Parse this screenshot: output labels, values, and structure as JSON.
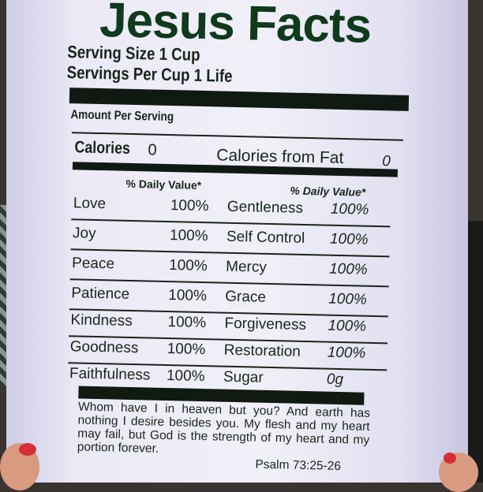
{
  "title": "Jesus Facts",
  "serving_size": "Serving Size 1 Cup",
  "servings_per": "Servings Per Cup 1 Life",
  "amount_per_serving": "Amount Per Serving",
  "calories_label": "Calories",
  "calories_value": "0",
  "calories_fat_label": "Calories from Fat",
  "calories_fat_value": "0",
  "daily_value_left": "% Daily Value*",
  "daily_value_right": "% Daily Value*",
  "rows": [
    {
      "l": "Love",
      "lv": "100%",
      "r": "Gentleness",
      "rv": "100%"
    },
    {
      "l": "Joy",
      "lv": "100%",
      "r": "Self Control",
      "rv": "100%"
    },
    {
      "l": "Peace",
      "lv": "100%",
      "r": "Mercy",
      "rv": "100%"
    },
    {
      "l": "Patience",
      "lv": "100%",
      "r": "Grace",
      "rv": "100%"
    },
    {
      "l": "Kindness",
      "lv": "100%",
      "r": "Forgiveness",
      "rv": "100%"
    },
    {
      "l": "Goodness",
      "lv": "100%",
      "r": "Restoration",
      "rv": "100%"
    },
    {
      "l": "Faithfulness",
      "lv": "100%",
      "r": "Sugar",
      "rv": "0g"
    }
  ],
  "verse": "Whom have I in heaven but you? And earth has nothing I desire besides you. My flesh and my heart may fail, but God is the strength of my heart and my portion forever.",
  "verse_ref": "Psalm 73:25-26",
  "colors": {
    "shirt": "#eceaf6",
    "text": "#17261a",
    "title": "#0f3a1c",
    "nail": "#d62f3a"
  }
}
